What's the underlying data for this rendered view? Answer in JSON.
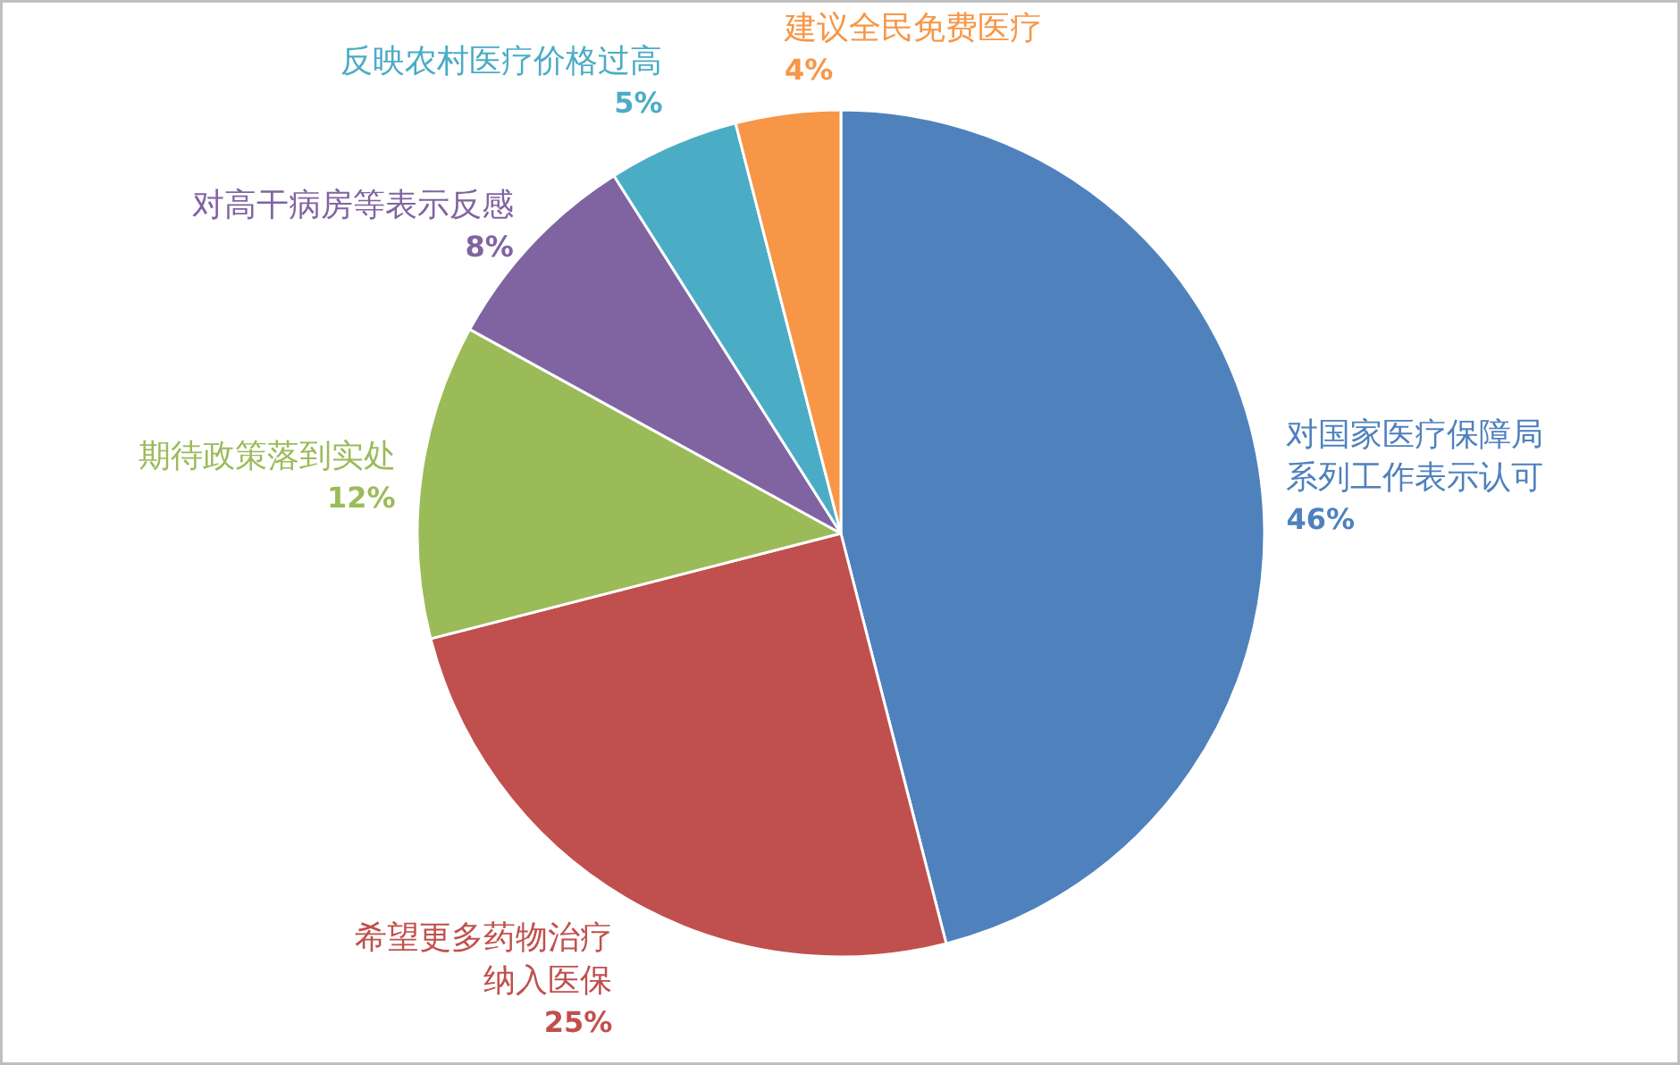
{
  "chart_data": {
    "type": "pie",
    "categories": [
      "对国家医疗保障局系列工作表示认可",
      "希望更多药物治疗纳入医保",
      "期待政策落到实处",
      "对高干病房等表示反感",
      "反映农村医疗价格过高",
      "建议全民免费医疗"
    ],
    "values": [
      46,
      25,
      12,
      8,
      5,
      4
    ],
    "value_labels": [
      "46%",
      "25%",
      "12%",
      "8%",
      "5%",
      "4%"
    ],
    "colors": [
      "#4f81bd",
      "#c0504d",
      "#9bbb59",
      "#8064a2",
      "#4bacc6",
      "#f79646"
    ],
    "legend": false
  }
}
